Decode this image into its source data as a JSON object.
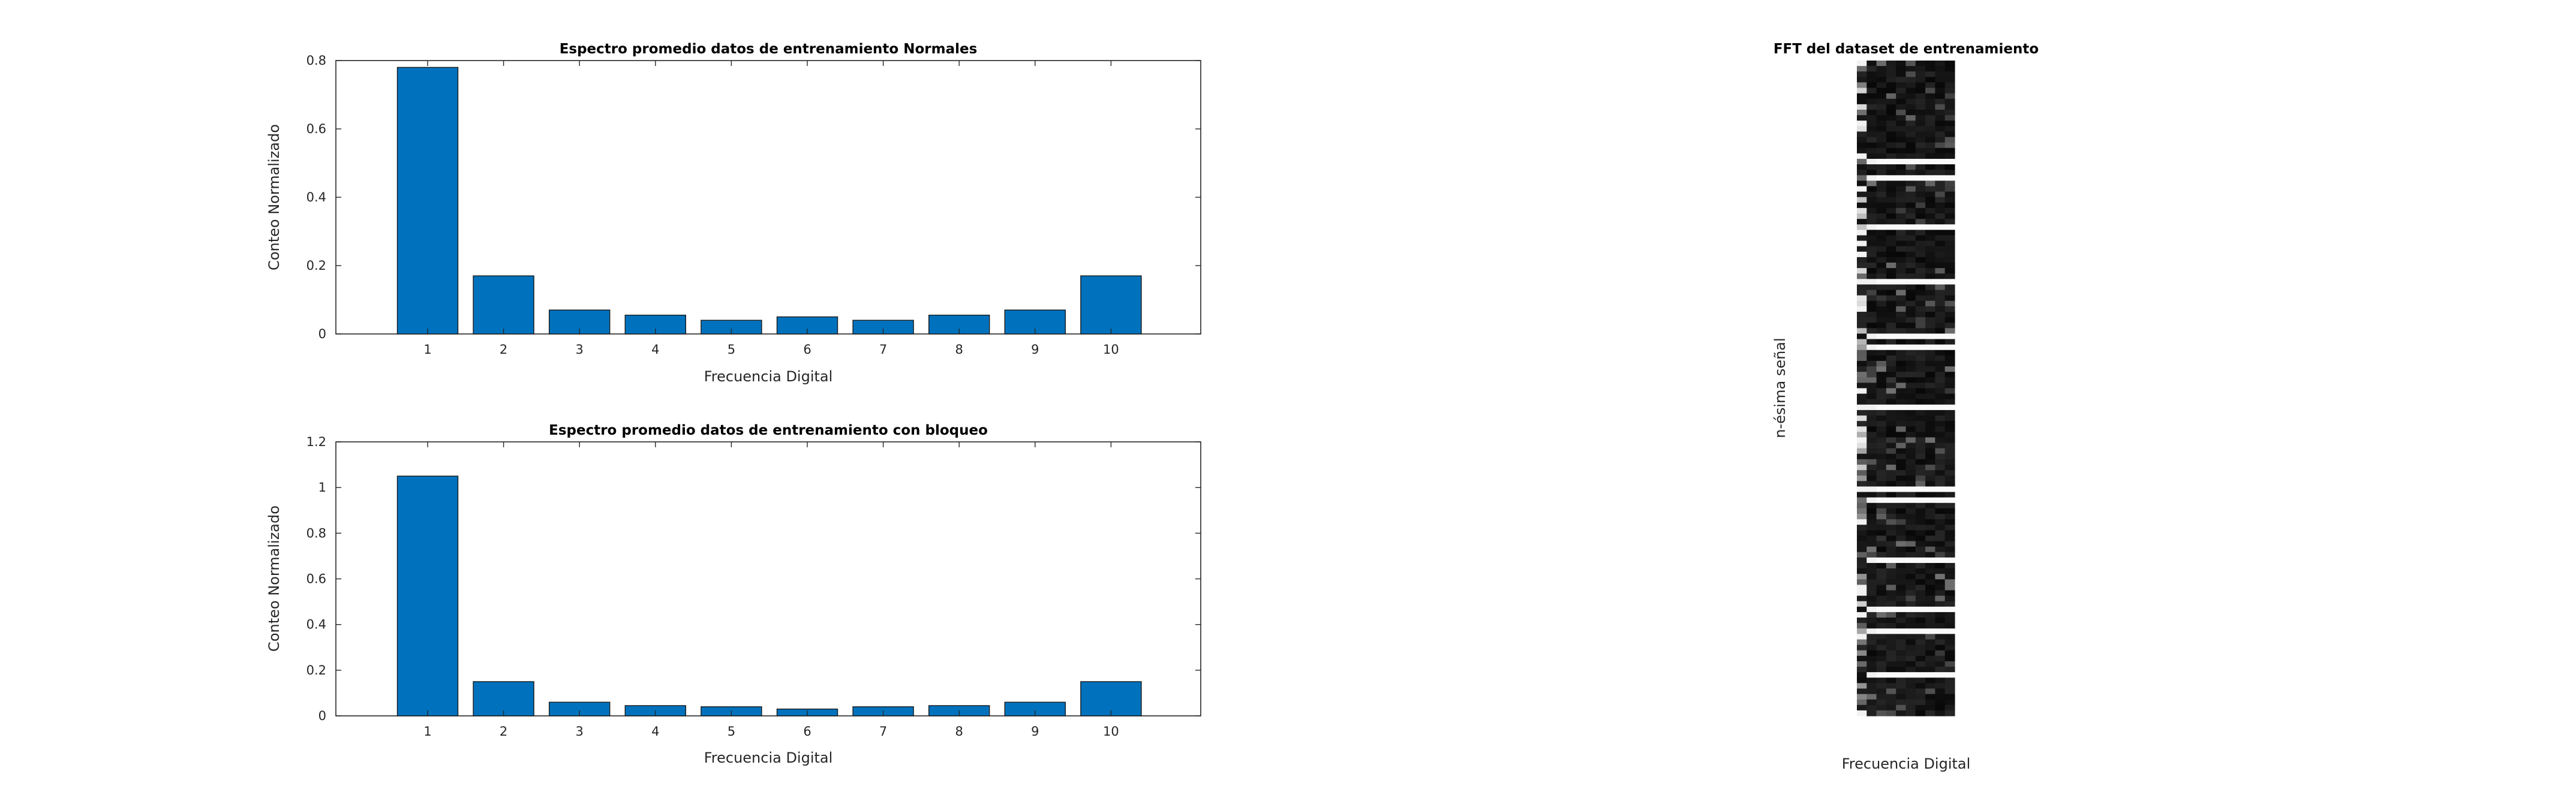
{
  "colors": {
    "bar": "#0072bd",
    "axis": "#262626",
    "background": "#ffffff"
  },
  "chart_data": [
    {
      "type": "bar",
      "title": "Espectro promedio datos de entrenamiento Normales",
      "xlabel": "Frecuencia Digital",
      "ylabel": "Conteo Normalizado",
      "categories": [
        "1",
        "2",
        "3",
        "4",
        "5",
        "6",
        "7",
        "8",
        "9",
        "10"
      ],
      "values": [
        0.78,
        0.17,
        0.07,
        0.055,
        0.04,
        0.05,
        0.04,
        0.055,
        0.07,
        0.17
      ],
      "ylim": [
        0,
        0.8
      ],
      "yticks": [
        "0",
        "0.2",
        "0.4",
        "0.6",
        "0.8"
      ],
      "ytick_values": [
        0,
        0.2,
        0.4,
        0.6,
        0.8
      ]
    },
    {
      "type": "bar",
      "title": "Espectro promedio datos de entrenamiento con bloqueo",
      "xlabel": "Frecuencia Digital",
      "ylabel": "Conteo Normalizado",
      "categories": [
        "1",
        "2",
        "3",
        "4",
        "5",
        "6",
        "7",
        "8",
        "9",
        "10"
      ],
      "values": [
        1.05,
        0.15,
        0.06,
        0.045,
        0.04,
        0.03,
        0.04,
        0.045,
        0.06,
        0.15
      ],
      "ylim": [
        0,
        1.2
      ],
      "yticks": [
        "0",
        "0.2",
        "0.4",
        "0.6",
        "0.8",
        "1",
        "1.2"
      ],
      "ytick_values": [
        0,
        0.2,
        0.4,
        0.6,
        0.8,
        1.0,
        1.2
      ]
    },
    {
      "type": "heatmap",
      "title": "FFT del dataset de entrenamiento",
      "xlabel": "Frecuencia Digital",
      "ylabel": "n-ésima señal",
      "colormap": "gray"
    }
  ]
}
